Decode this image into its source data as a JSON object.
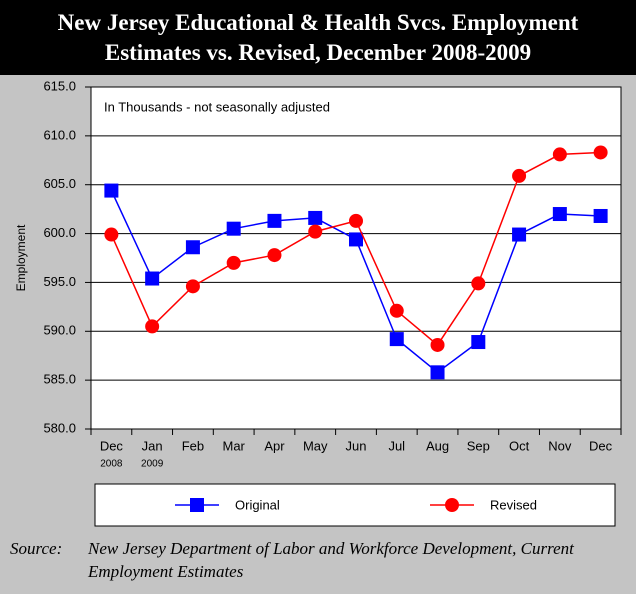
{
  "chart_data": {
    "type": "line",
    "title": "New Jersey Educational & Health Svcs. Employment Estimates vs. Revised, December 2008-2009",
    "annotation": "In Thousands - not seasonally adjusted",
    "y_label": "Employment",
    "categories": [
      "Dec",
      "Jan",
      "Feb",
      "Mar",
      "Apr",
      "May",
      "Jun",
      "Jul",
      "Aug",
      "Sep",
      "Oct",
      "Nov",
      "Dec"
    ],
    "category_sublabels": [
      "2008",
      "2009",
      null,
      null,
      null,
      null,
      null,
      null,
      null,
      null,
      null,
      null,
      null
    ],
    "series": [
      {
        "name": "Original",
        "color": "#0000ff",
        "marker": "square",
        "values": [
          604.4,
          595.4,
          598.6,
          600.5,
          601.3,
          601.6,
          599.4,
          589.2,
          585.8,
          588.9,
          599.9,
          602.0,
          601.8
        ]
      },
      {
        "name": "Revised",
        "color": "#ff0000",
        "marker": "circle",
        "values": [
          599.9,
          590.5,
          594.6,
          597.0,
          597.8,
          600.2,
          601.3,
          592.1,
          588.6,
          594.9,
          605.9,
          608.1,
          608.3
        ]
      }
    ],
    "ylim": [
      580,
      615
    ],
    "yticks": [
      {
        "value": 580,
        "label": "580.0"
      },
      {
        "value": 585,
        "label": "585.0"
      },
      {
        "value": 590,
        "label": "590.0"
      },
      {
        "value": 595,
        "label": "595.0"
      },
      {
        "value": 600,
        "label": "600.0"
      },
      {
        "value": 605,
        "label": "605.0"
      },
      {
        "value": 610,
        "label": "610.0"
      },
      {
        "value": 615,
        "label": "615.0"
      }
    ],
    "grid": true,
    "legend": "bottom",
    "source_label": "Source:",
    "source": "New Jersey Department of Labor and Workforce Development, Current Employment Estimates"
  }
}
